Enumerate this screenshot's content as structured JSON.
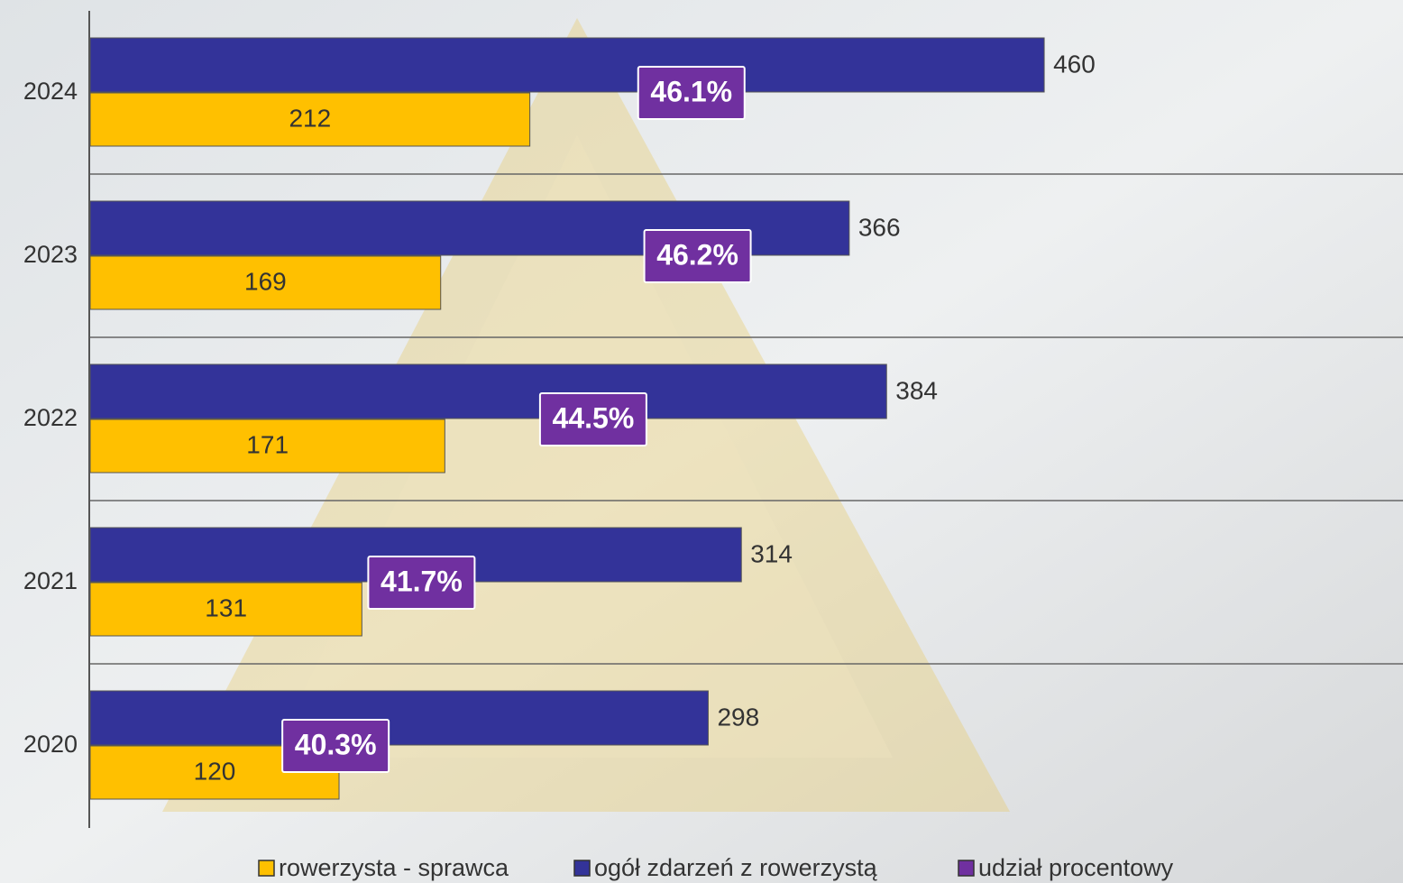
{
  "chart_data": {
    "type": "bar",
    "orientation": "horizontal",
    "categories": [
      "2024",
      "2023",
      "2022",
      "2021",
      "2020"
    ],
    "xlim": [
      0,
      633
    ],
    "x2lim": [
      36.3,
      57.7
    ],
    "series": [
      {
        "name": "rowerzysta - sprawca",
        "color": "#ffc000",
        "values": [
          212,
          169,
          171,
          131,
          120
        ]
      },
      {
        "name": "ogół zdarzeń z rowerzystą",
        "color": "#333399",
        "values": [
          460,
          366,
          384,
          314,
          298
        ]
      },
      {
        "name": "udział procentowy",
        "color": "#7030a0",
        "axis": "x2",
        "values": [
          46.1,
          46.2,
          44.5,
          41.7,
          40.3
        ],
        "value_labels": [
          "46.1%",
          "46.2%",
          "44.5%",
          "41.7%",
          "40.3%"
        ]
      }
    ]
  }
}
